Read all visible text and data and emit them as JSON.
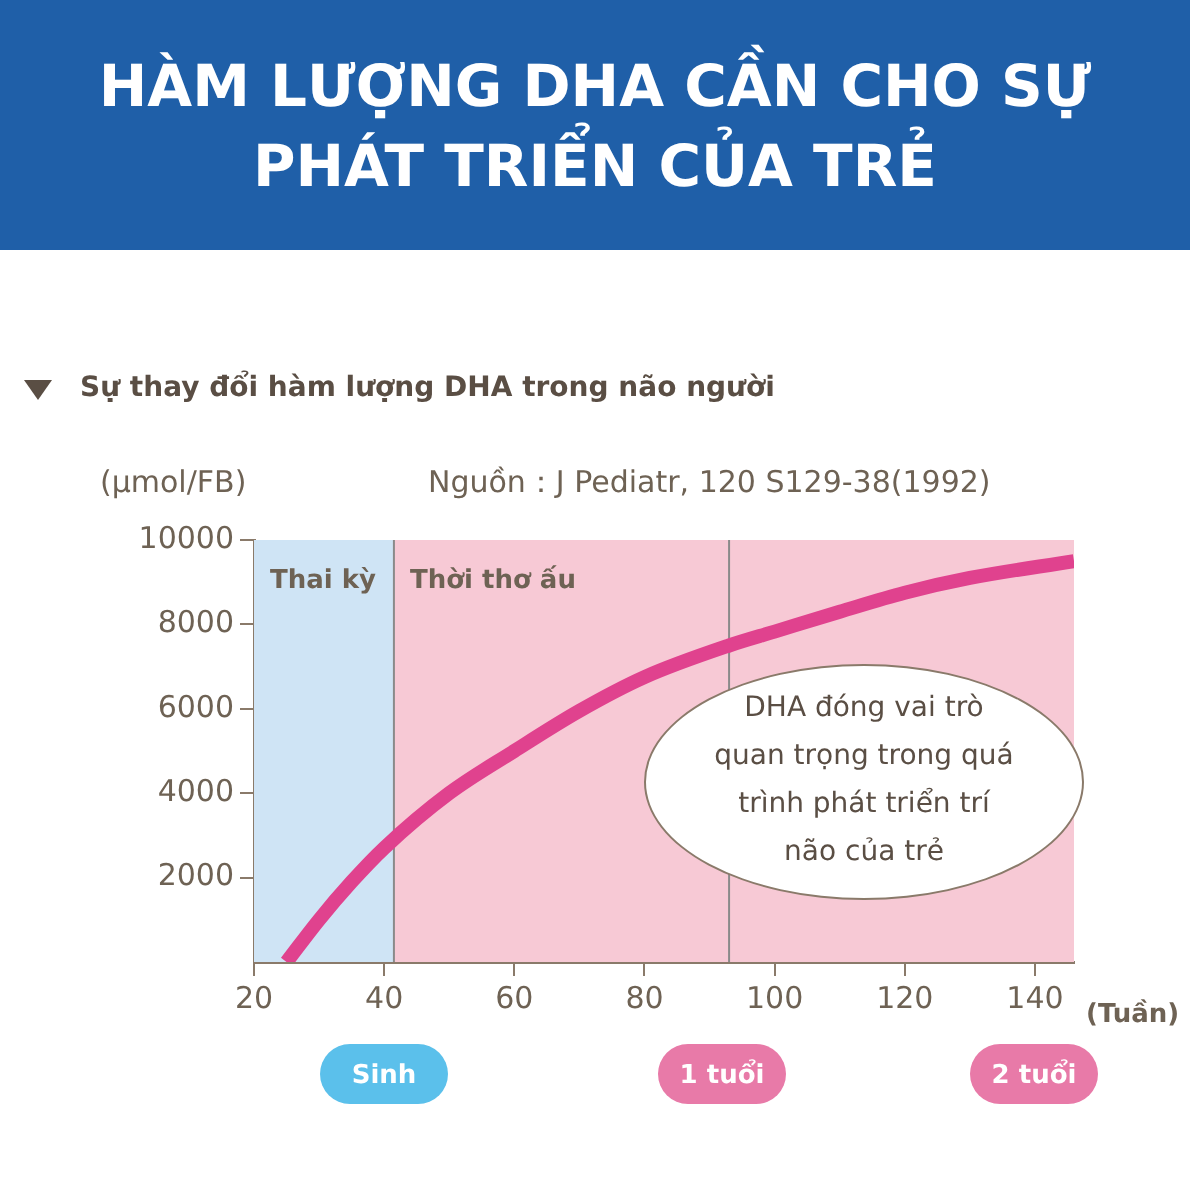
{
  "chart_data": {
    "type": "line",
    "title": "HÀM LƯỢNG DHA CẦN CHO SỰ PHÁT TRIỂN CỦA TRẺ",
    "subtitle": "Sự thay đổi hàm lượng DHA trong não người",
    "ylabel": "(μmol/FB)",
    "xlabel": "(Tuần)",
    "x": [
      25,
      30,
      35,
      40,
      50,
      60,
      70,
      80,
      93,
      100,
      110,
      120,
      130,
      146
    ],
    "series": [
      {
        "color": "#e0428e",
        "values": [
          0,
          1000,
          1900,
          2700,
          4000,
          5000,
          5950,
          6750,
          7500,
          7830,
          8300,
          8750,
          9100,
          9500
        ]
      }
    ],
    "xlim": [
      20,
      146
    ],
    "xticks": [
      20,
      40,
      60,
      80,
      100,
      120,
      140
    ],
    "ylim": [
      0,
      10000
    ],
    "yticks": [
      2000,
      4000,
      6000,
      8000,
      10000
    ],
    "bands": [
      {
        "axis": "x",
        "from": 20,
        "to": 41.5,
        "label": "Thai kỳ",
        "color": "#cfe4f5"
      },
      {
        "axis": "x",
        "from": 41.5,
        "to": 146,
        "label": "Thời thơ ấu",
        "color": "#f7c9d5"
      }
    ],
    "ref_lines": [
      {
        "axis": "x",
        "value": 41.5,
        "color": "#8a8a8a"
      },
      {
        "axis": "x",
        "value": 93,
        "color": "#8a8a8a"
      }
    ],
    "annotations": [
      "Nguồn：J Pediatr, 120 S129-38(1992)",
      "DHA đóng vai trò quan trọng trong quá trình phát triển trí não của trẻ",
      "Sinh",
      "1 tuổi",
      "2 tuổi"
    ],
    "marker": "none",
    "line_style": "solid"
  }
}
